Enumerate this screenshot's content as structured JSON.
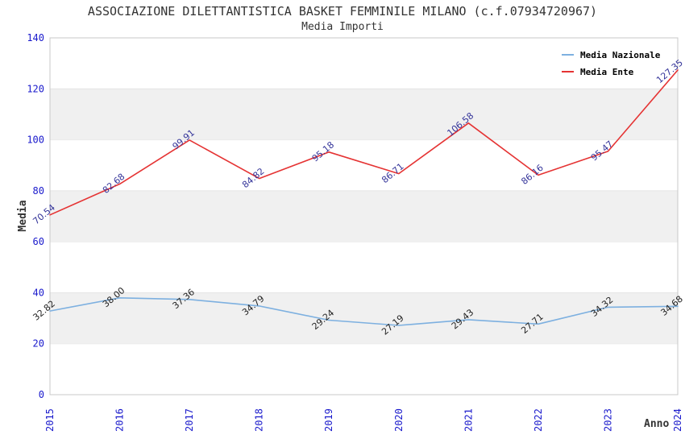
{
  "chart_data": {
    "type": "line",
    "title": "ASSOCIAZIONE DILETTANTISTICA BASKET FEMMINILE MILANO (c.f.07934720967)",
    "subtitle": "Media Importi",
    "xlabel": "Anno",
    "ylabel": "Media",
    "categories": [
      "2015",
      "2016",
      "2017",
      "2018",
      "2019",
      "2020",
      "2021",
      "2022",
      "2023",
      "2024"
    ],
    "series": [
      {
        "name": "Media Nazionale",
        "color": "#7db0e0",
        "label_color": "#222222",
        "values": [
          32.82,
          38.0,
          37.36,
          34.79,
          29.24,
          27.19,
          29.43,
          27.71,
          34.32,
          34.68
        ]
      },
      {
        "name": "Media Ente",
        "color": "#e53333",
        "label_color": "#333399",
        "values": [
          70.54,
          82.68,
          99.91,
          84.82,
          95.18,
          86.71,
          106.58,
          86.16,
          95.47,
          127.35
        ]
      }
    ],
    "ylim": [
      0,
      140
    ],
    "ytick_step": 20,
    "legend_position": "top-right",
    "grid": "alternating-bands",
    "band_color": "#f0f0f0",
    "gridline_color": "#e4e4e4",
    "border_color": "#c8c8c8",
    "axis_label_color": "#1a1acc",
    "value_label_angle": -40
  }
}
